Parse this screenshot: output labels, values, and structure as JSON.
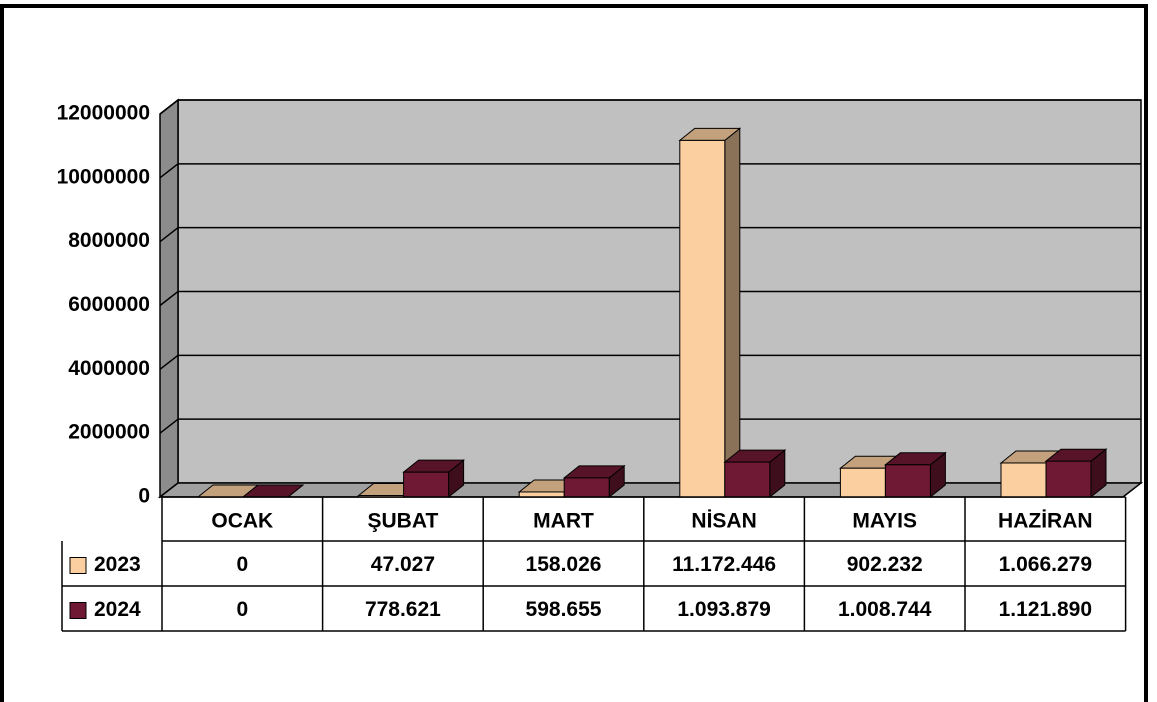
{
  "chart_data": {
    "type": "bar3d",
    "categories": [
      "OCAK",
      "ŞUBAT",
      "MART",
      "NİSAN",
      "MAYIS",
      "HAZİRAN"
    ],
    "series": [
      {
        "name": "2023",
        "color": "#fbcfa0",
        "values": [
          0,
          47027,
          158026,
          11172446,
          902232,
          1066279
        ],
        "value_labels": [
          "0",
          "47.027",
          "158.026",
          "11.172.446",
          "902.232",
          "1.066.279"
        ]
      },
      {
        "name": "2024",
        "color": "#701935",
        "values": [
          0,
          778621,
          598655,
          1093879,
          1008744,
          1121890
        ],
        "value_labels": [
          "0",
          "778.621",
          "598.655",
          "1.093.879",
          "1.008.744",
          "1.121.890"
        ]
      }
    ],
    "ylim": [
      0,
      12000000
    ],
    "yticks": [
      0,
      2000000,
      4000000,
      6000000,
      8000000,
      10000000,
      12000000
    ],
    "grid": true
  }
}
